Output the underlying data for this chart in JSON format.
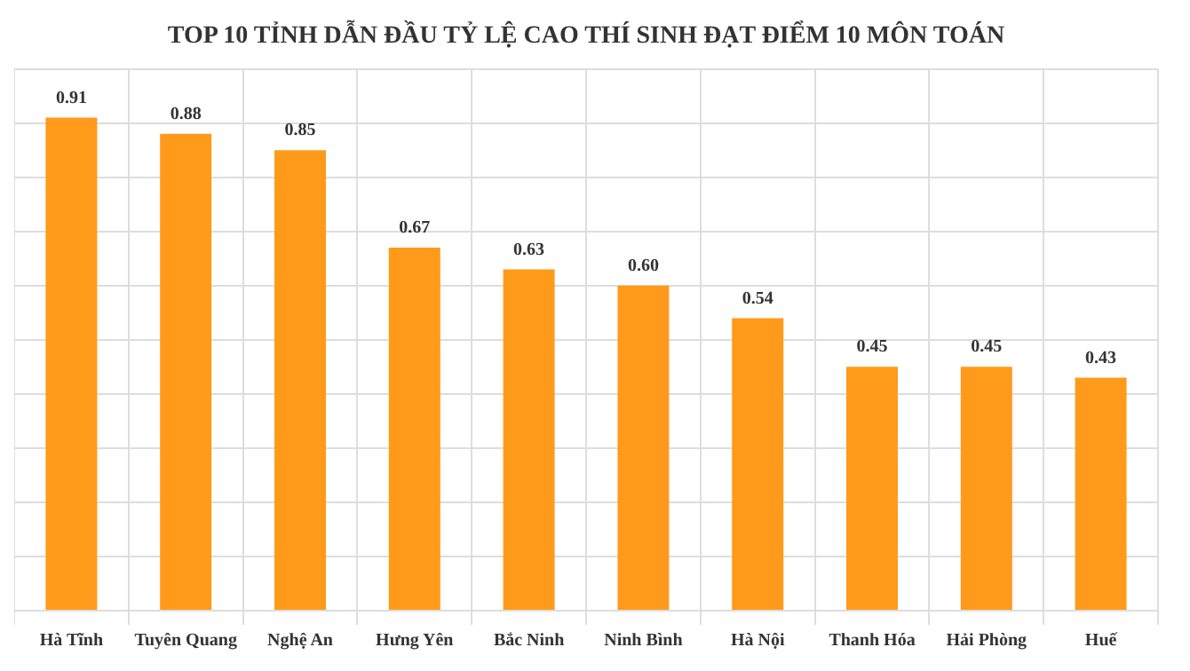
{
  "chart_data": {
    "type": "bar",
    "title": "TOP 10 TỈNH DẪN ĐẦU TỶ LỆ CAO THÍ SINH ĐẠT ĐIỂM 10 MÔN TOÁN",
    "categories": [
      "Hà Tĩnh",
      "Tuyên Quang",
      "Nghệ An",
      "Hưng Yên",
      "Bắc Ninh",
      "Ninh Bình",
      "Hà Nội",
      "Thanh Hóa",
      "Hải Phòng",
      "Huế"
    ],
    "values": [
      0.91,
      0.88,
      0.85,
      0.67,
      0.63,
      0.6,
      0.54,
      0.45,
      0.45,
      0.43
    ],
    "value_labels": [
      "0.91",
      "0.88",
      "0.85",
      "0.67",
      "0.63",
      "0.60",
      "0.54",
      "0.45",
      "0.45",
      "0.43"
    ],
    "color": "#ff9a1a",
    "ylim": [
      0,
      1
    ],
    "yticks": [
      {
        "value": 0,
        "label": null
      },
      {
        "value": 0.1,
        "label": null
      },
      {
        "value": 0.2,
        "label": null
      },
      {
        "value": 0.3,
        "label": null
      },
      {
        "value": 0.4,
        "label": null
      },
      {
        "value": 0.5,
        "label": null
      },
      {
        "value": 0.6,
        "label": null
      },
      {
        "value": 0.7,
        "label": null
      },
      {
        "value": 0.8,
        "label": null
      },
      {
        "value": 0.9,
        "label": null
      },
      {
        "value": 1,
        "label": null
      }
    ],
    "grid": true,
    "tick_labels": "x"
  }
}
